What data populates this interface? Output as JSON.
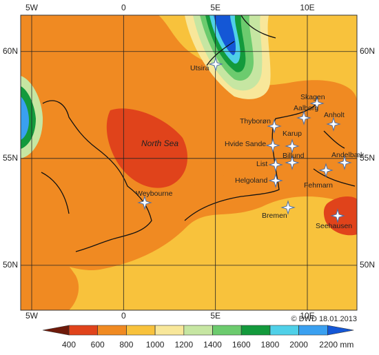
{
  "map": {
    "lon_ticks": [
      {
        "value": -5,
        "label": "5W"
      },
      0,
      {
        "value": 5,
        "label": "5E"
      },
      {
        "value": 10,
        "label": "10E"
      }
    ],
    "lat_ticks": [
      {
        "value": 60,
        "label": "60N"
      },
      {
        "value": 55,
        "label": "55N"
      },
      {
        "value": 50,
        "label": "50N"
      }
    ],
    "xlim": [
      -5.6,
      12.7
    ],
    "ylim": [
      47.9,
      61.7
    ],
    "sea_label": "North Sea",
    "stations": [
      "Utsira",
      "Skagen",
      "Aalborg",
      "Anholt",
      "Thyborøn",
      "Karup",
      "Hvide Sande",
      "Andelbæk",
      "Billund",
      "List",
      "Helgoland",
      "Fehmarn",
      "Bremen",
      "Seehausen",
      "Weybourne"
    ],
    "credit": "© DWD 18.01.2013"
  },
  "colorbar": {
    "ticks": [
      400,
      600,
      800,
      1000,
      1200,
      1400,
      1600,
      1800,
      2000,
      {
        "value": 2200,
        "label": "2200 mm"
      }
    ],
    "colors": [
      "#6e1a0a",
      "#e0431b",
      "#f08a22",
      "#f8c23c",
      "#f8e79a",
      "#c6e6a2",
      "#6ccb6e",
      "#139a3c",
      "#4fd0e8",
      "#3aa0f0",
      "#1457d6"
    ]
  }
}
